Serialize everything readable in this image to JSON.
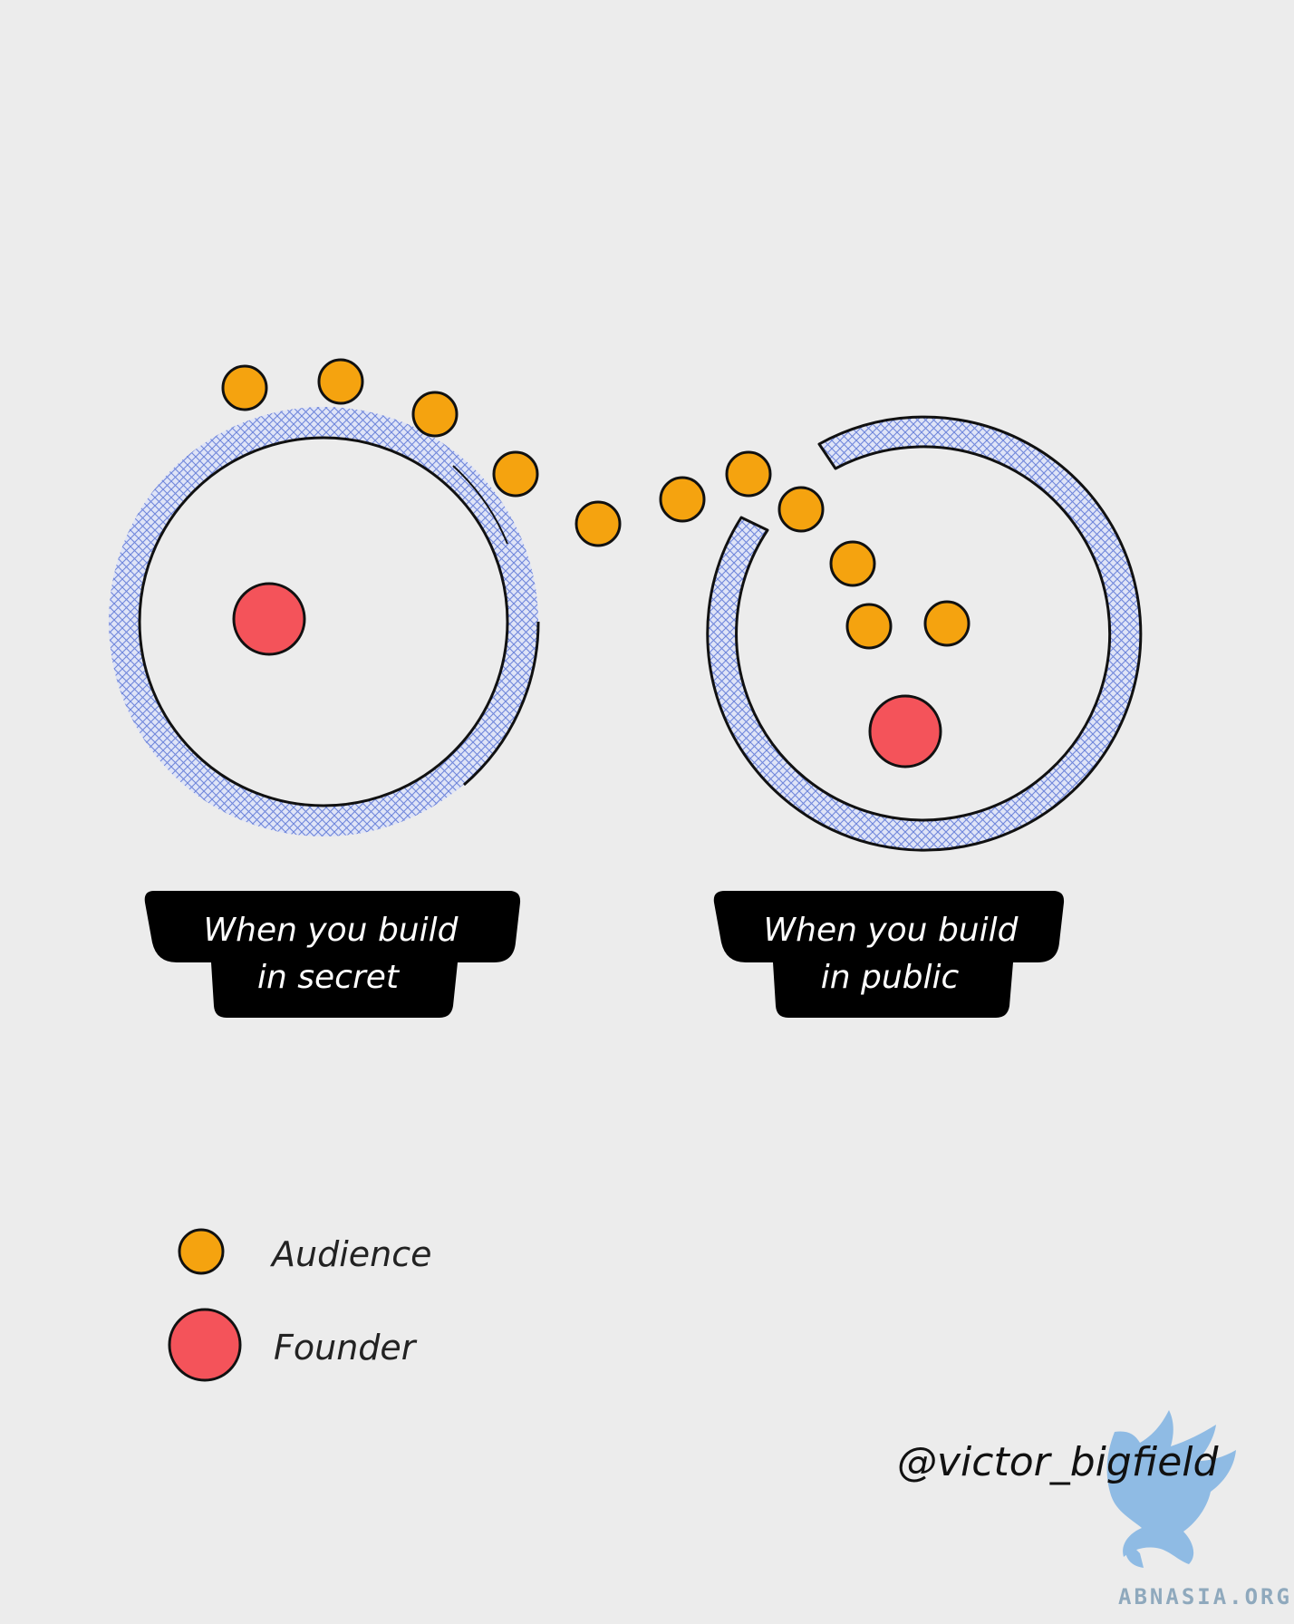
{
  "diagram": {
    "left_panel": {
      "label_line1": "When you build",
      "label_line2": "in secret"
    },
    "right_panel": {
      "label_line1": "When you build",
      "label_line2": "in public"
    },
    "legend": {
      "items": [
        {
          "label": "Audience",
          "color": "#f5a30f"
        },
        {
          "label": "Founder",
          "color": "#f4535a"
        }
      ]
    },
    "credit": "@victor_bigfield",
    "watermark": "ABNASIA.ORG",
    "colors": {
      "background": "#ececec",
      "ring_fill": "#dfe4f7",
      "ring_hatch": "#6f86db",
      "audience": "#f5a30f",
      "founder": "#f4535a",
      "label_box": "#000000",
      "label_text": "#ffffff",
      "watermark": "#7fb3e3"
    }
  }
}
